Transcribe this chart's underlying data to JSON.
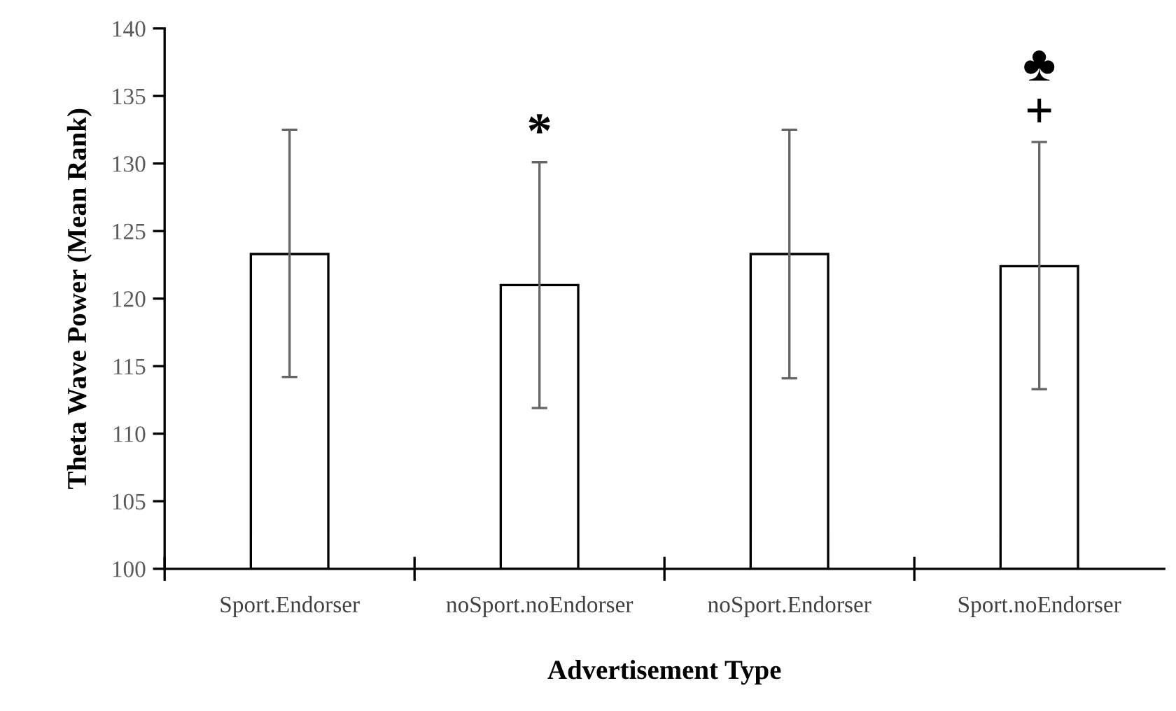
{
  "chart_data": {
    "type": "bar",
    "xlabel": "Advertisement Type",
    "ylabel": "Theta Wave Power (Mean Rank)",
    "categories": [
      "Sport.Endorser",
      "noSport.noEndorser",
      "noSport.Endorser",
      "Sport.noEndorser"
    ],
    "values": [
      123.3,
      121.0,
      123.3,
      122.4
    ],
    "errors": [
      [
        114.2,
        132.5
      ],
      [
        111.9,
        130.1
      ],
      [
        114.1,
        132.5
      ],
      [
        113.3,
        131.6
      ]
    ],
    "color": "#ffffff",
    "ylim": [
      100,
      140
    ],
    "yticks": [
      100,
      105,
      110,
      115,
      120,
      125,
      130,
      135,
      140
    ],
    "grid": false,
    "legend": false,
    "annotations": [
      "*",
      "+",
      "♣"
    ]
  }
}
